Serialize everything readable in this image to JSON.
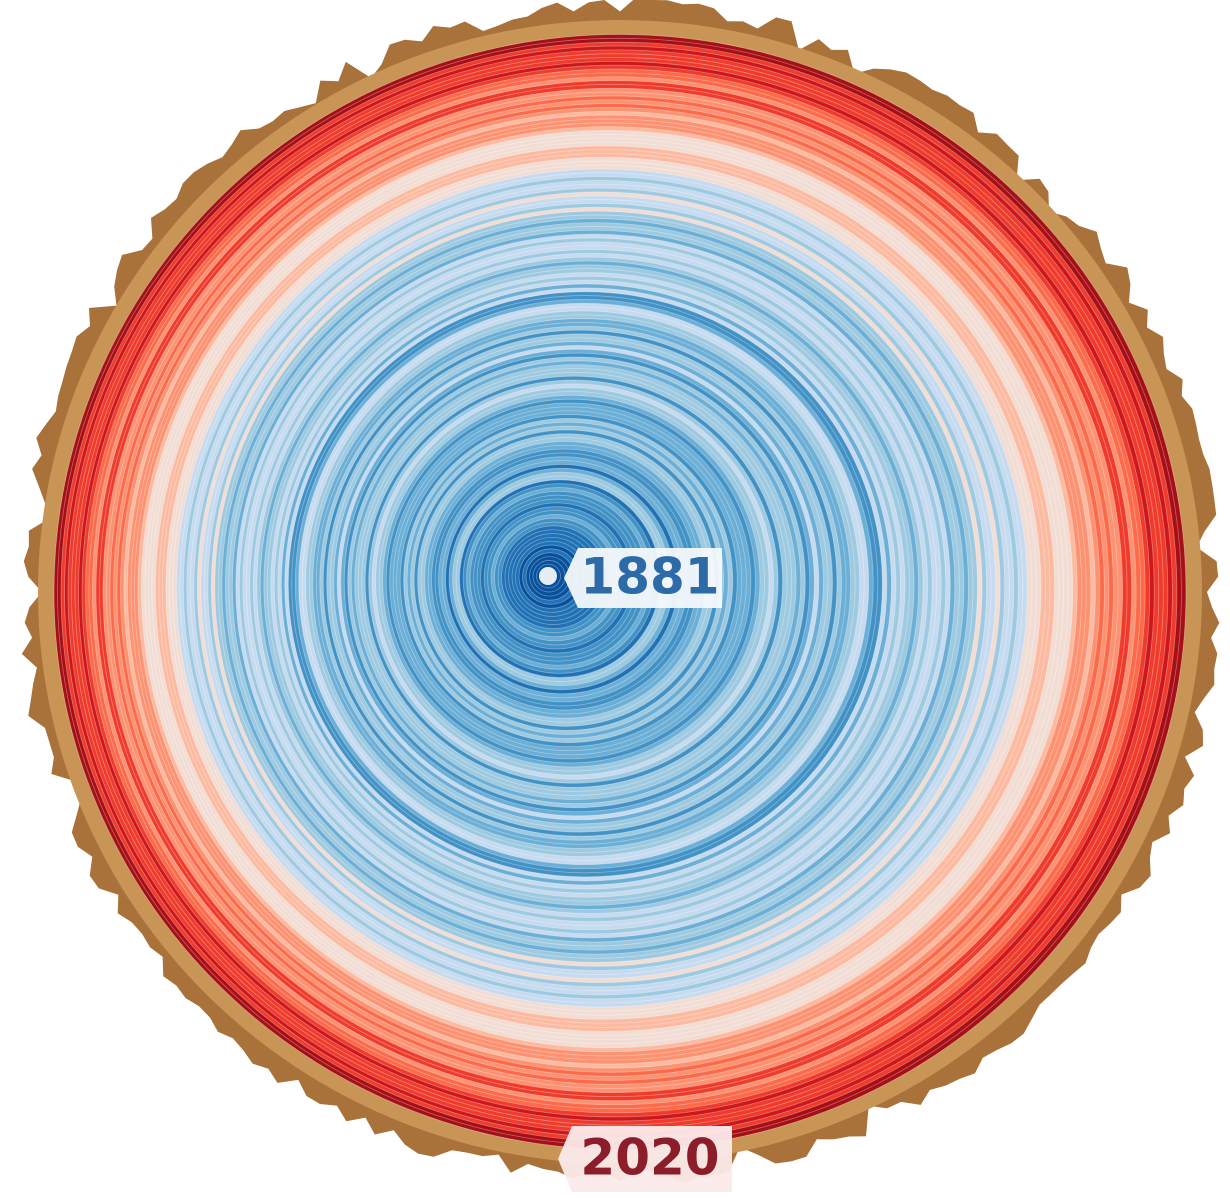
{
  "labels": {
    "center": "1881",
    "edge": "2020"
  }
}
